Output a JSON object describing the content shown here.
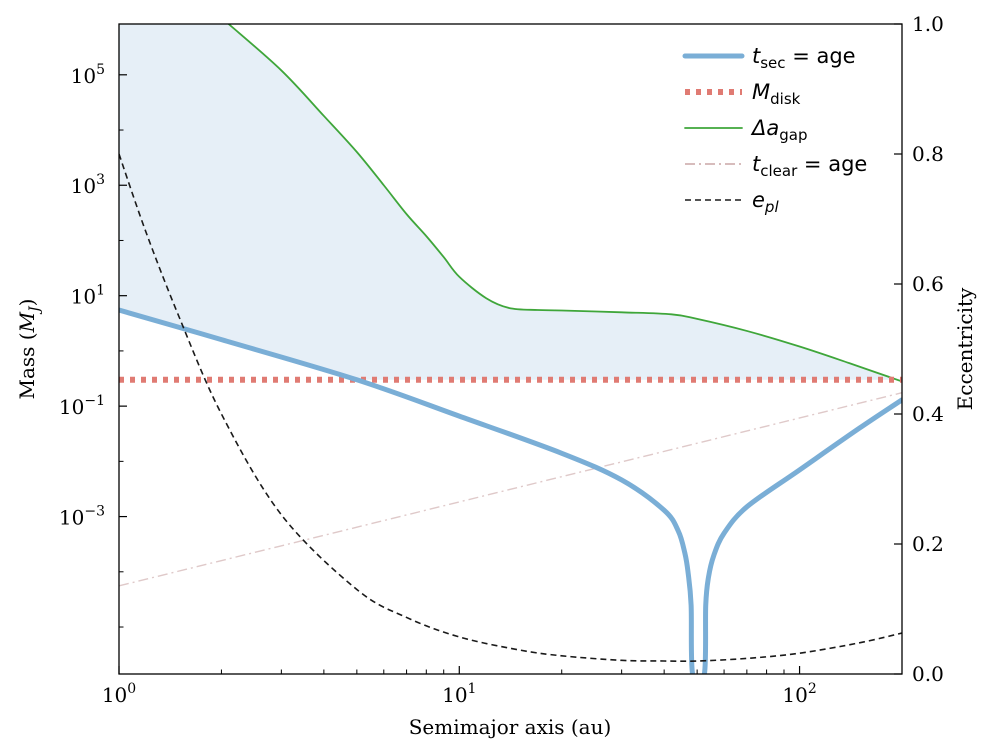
{
  "chart_data": {
    "type": "line",
    "x_scale": "log",
    "y_scale": "log",
    "xlim": [
      1,
      200
    ],
    "ylim": [
      1.41e-06,
      831763
    ],
    "y2lim": [
      0.0,
      1.0
    ],
    "xlabel": "Semimajor axis (au)",
    "ylabel_parts": {
      "pre": "Mass (",
      "sym": "M",
      "sub": "J",
      "post": ")"
    },
    "y2label": "Eccentricity",
    "x_ticks": [
      {
        "value": 1,
        "base": "10",
        "exp": "0"
      },
      {
        "value": 10,
        "base": "10",
        "exp": "1"
      },
      {
        "value": 100,
        "base": "10",
        "exp": "2"
      }
    ],
    "y_ticks": [
      {
        "value": 0.001,
        "base": "10",
        "exp": "−3"
      },
      {
        "value": 0.1,
        "base": "10",
        "exp": "−1"
      },
      {
        "value": 10,
        "base": "10",
        "exp": "1"
      },
      {
        "value": 1000,
        "base": "10",
        "exp": "3"
      },
      {
        "value": 100000,
        "base": "10",
        "exp": "5"
      }
    ],
    "y2_ticks": [
      "0.0",
      "0.2",
      "0.4",
      "0.6",
      "0.8",
      "1.0"
    ],
    "shaded_region": {
      "color": "#dce8f4",
      "between": [
        "t_sec",
        "delta_a_gap"
      ]
    },
    "legend": {
      "position": "top-right",
      "entries": [
        {
          "key": "t_sec",
          "sym": "t",
          "sub": "sec",
          "suffix": " = age"
        },
        {
          "key": "m_disk",
          "sym": "M",
          "sub": "disk",
          "suffix": ""
        },
        {
          "key": "delta_a_gap",
          "sym": "Δa",
          "sub": "gap",
          "suffix": ""
        },
        {
          "key": "t_clear",
          "sym": "t",
          "sub": "clear",
          "suffix": " = age"
        },
        {
          "key": "e_pl",
          "sym": "e",
          "sub": "pl",
          "suffix": ""
        }
      ]
    },
    "series": [
      {
        "key": "t_sec",
        "axis": "left",
        "color": "#7aaed6",
        "style": "solid-thick",
        "x": [
          1,
          2,
          5,
          10,
          20,
          30,
          40,
          44,
          46,
          47,
          48,
          48.5,
          52.5,
          53,
          54,
          56,
          60,
          70,
          100,
          150,
          200
        ],
        "y": [
          5.5,
          1.6,
          0.3,
          0.066,
          0.014,
          0.0046,
          0.0013,
          0.00055,
          0.00022,
          0.0001,
          2.5e-05,
          1.4e-06,
          1.4e-06,
          2.5e-05,
          8e-05,
          0.0002,
          0.0005,
          0.0015,
          0.007,
          0.04,
          0.13
        ]
      },
      {
        "key": "m_disk",
        "axis": "left",
        "color": "#e07b73",
        "style": "dotted-thick",
        "x": [
          1,
          200
        ],
        "y": [
          0.3,
          0.3
        ]
      },
      {
        "key": "delta_a_gap",
        "axis": "left",
        "color": "#3fa63a",
        "style": "solid-thin",
        "x": [
          2.1,
          3,
          4,
          5,
          6,
          7,
          8,
          9,
          10,
          12,
          14,
          17,
          20,
          30,
          42,
          50,
          70,
          100,
          140,
          200
        ],
        "y": [
          831763,
          120000,
          18000,
          4000,
          1000,
          300,
          120,
          50,
          22,
          9,
          6,
          5.5,
          5.4,
          5.0,
          4.6,
          3.8,
          2.3,
          1.2,
          0.6,
          0.28
        ]
      },
      {
        "key": "t_clear",
        "axis": "left",
        "color": "#caa5a5",
        "style": "dashdot-thin",
        "x": [
          1,
          200
        ],
        "y": [
          5.56e-05,
          0.175
        ]
      },
      {
        "key": "e_pl",
        "axis": "right",
        "color": "#1a1a1a",
        "style": "dashed",
        "x": [
          1,
          1.2,
          1.5,
          2,
          3,
          5,
          7,
          10,
          15,
          20,
          30,
          40,
          50,
          70,
          100,
          150,
          200
        ],
        "y": [
          0.8,
          0.68,
          0.55,
          0.4,
          0.245,
          0.13,
          0.087,
          0.057,
          0.037,
          0.028,
          0.021,
          0.02,
          0.02,
          0.024,
          0.032,
          0.048,
          0.063
        ]
      }
    ]
  }
}
